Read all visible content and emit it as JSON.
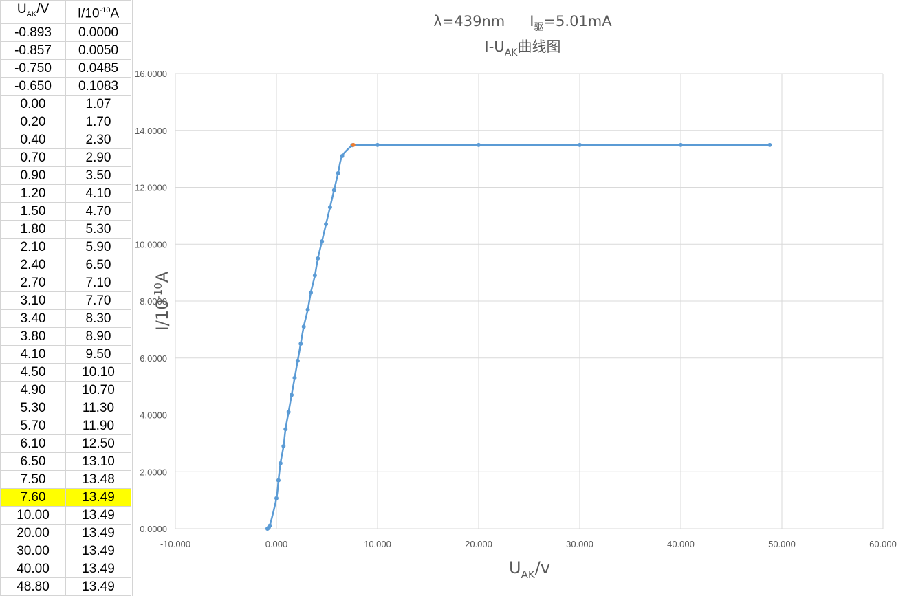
{
  "table": {
    "header": {
      "col1_base": "U",
      "col1_sub": "AK",
      "col1_tail": "/V",
      "col2_base": "I/10",
      "col2_sup": "-10",
      "col2_tail": "A"
    },
    "rows": [
      [
        "-0.893",
        "0.0000"
      ],
      [
        "-0.857",
        "0.0050"
      ],
      [
        "-0.750",
        "0.0485"
      ],
      [
        "-0.650",
        "0.1083"
      ],
      [
        "0.00",
        "1.07"
      ],
      [
        "0.20",
        "1.70"
      ],
      [
        "0.40",
        "2.30"
      ],
      [
        "0.70",
        "2.90"
      ],
      [
        "0.90",
        "3.50"
      ],
      [
        "1.20",
        "4.10"
      ],
      [
        "1.50",
        "4.70"
      ],
      [
        "1.80",
        "5.30"
      ],
      [
        "2.10",
        "5.90"
      ],
      [
        "2.40",
        "6.50"
      ],
      [
        "2.70",
        "7.10"
      ],
      [
        "3.10",
        "7.70"
      ],
      [
        "3.40",
        "8.30"
      ],
      [
        "3.80",
        "8.90"
      ],
      [
        "4.10",
        "9.50"
      ],
      [
        "4.50",
        "10.10"
      ],
      [
        "4.90",
        "10.70"
      ],
      [
        "5.30",
        "11.30"
      ],
      [
        "5.70",
        "11.90"
      ],
      [
        "6.10",
        "12.50"
      ],
      [
        "6.50",
        "13.10"
      ],
      [
        "7.50",
        "13.48"
      ],
      [
        "7.60",
        "13.49"
      ],
      [
        "10.00",
        "13.49"
      ],
      [
        "20.00",
        "13.49"
      ],
      [
        "30.00",
        "13.49"
      ],
      [
        "40.00",
        "13.49"
      ],
      [
        "48.80",
        "13.49"
      ]
    ],
    "highlight_row": 26,
    "highlight_color": "#ffff00"
  },
  "chart_data": {
    "type": "scatter",
    "title_line1_a": "λ=439nm",
    "title_line1_b_base": "I",
    "title_line1_b_sub": "驱",
    "title_line1_b_tail": "=5.01mA",
    "title_line2_base": "I-U",
    "title_line2_sub": "AK",
    "title_line2_tail": "曲线图",
    "xlabel_base": "U",
    "xlabel_sub": "AK",
    "xlabel_tail": "/v",
    "ylabel_base": "I/10",
    "ylabel_sup": "-10",
    "ylabel_tail": "A",
    "xlim": [
      -10,
      60
    ],
    "ylim": [
      0,
      16
    ],
    "xticks": [
      "-10.000",
      "0.000",
      "10.000",
      "20.000",
      "30.000",
      "40.000",
      "50.000",
      "60.000"
    ],
    "yticks": [
      "0.0000",
      "2.0000",
      "4.0000",
      "6.0000",
      "8.0000",
      "10.0000",
      "12.0000",
      "14.0000",
      "16.0000"
    ],
    "grid": true,
    "line_color": "#5b9bd5",
    "highlight_color": "#ed7d31",
    "highlight_index": 26,
    "x": [
      -0.893,
      -0.857,
      -0.75,
      -0.65,
      0.0,
      0.2,
      0.4,
      0.7,
      0.9,
      1.2,
      1.5,
      1.8,
      2.1,
      2.4,
      2.7,
      3.1,
      3.4,
      3.8,
      4.1,
      4.5,
      4.9,
      5.3,
      5.7,
      6.1,
      6.5,
      7.5,
      7.6,
      10.0,
      20.0,
      30.0,
      40.0,
      48.8
    ],
    "y": [
      0.0,
      0.005,
      0.0485,
      0.1083,
      1.07,
      1.7,
      2.3,
      2.9,
      3.5,
      4.1,
      4.7,
      5.3,
      5.9,
      6.5,
      7.1,
      7.7,
      8.3,
      8.9,
      9.5,
      10.1,
      10.7,
      11.3,
      11.9,
      12.5,
      13.1,
      13.48,
      13.49,
      13.49,
      13.49,
      13.49,
      13.49,
      13.49
    ]
  }
}
